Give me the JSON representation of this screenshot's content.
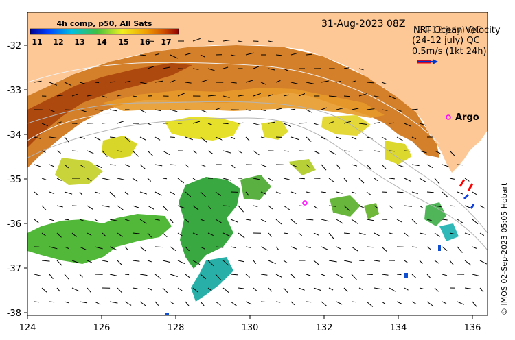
{
  "title": "31-Aug-2023 08Z",
  "colorbar": {
    "title": "4h comp, p50, All Sats",
    "ticks": [
      "11",
      "12",
      "13",
      "14",
      "15",
      "16",
      "17"
    ],
    "range": [
      11,
      17
    ]
  },
  "velocity_legend": {
    "line1": "NRT Ocean Velocity",
    "line2": "(24-12 july) QC",
    "line3": "0.5m/s (1kt 24h)",
    "arrow_color": "#0033cc",
    "arrow_outline": "#ff0000"
  },
  "argo": {
    "label": "Argo",
    "marker_color": "#ff00ff"
  },
  "axes": {
    "x_ticks": [
      "124",
      "126",
      "128",
      "130",
      "132",
      "134",
      "136"
    ],
    "y_ticks": [
      "-32",
      "-33",
      "-34",
      "-35",
      "-36",
      "-37",
      "-38"
    ],
    "x_range": [
      124,
      136.5
    ],
    "y_range": [
      -38.1,
      -31.4
    ]
  },
  "copyright": "© IMOS 02-Sep-2023 05:05 Hobart",
  "colors": {
    "land": "#fdc896",
    "ocean": "#ffffff",
    "warm": "#c85a10",
    "cool": "#3ab23a"
  }
}
